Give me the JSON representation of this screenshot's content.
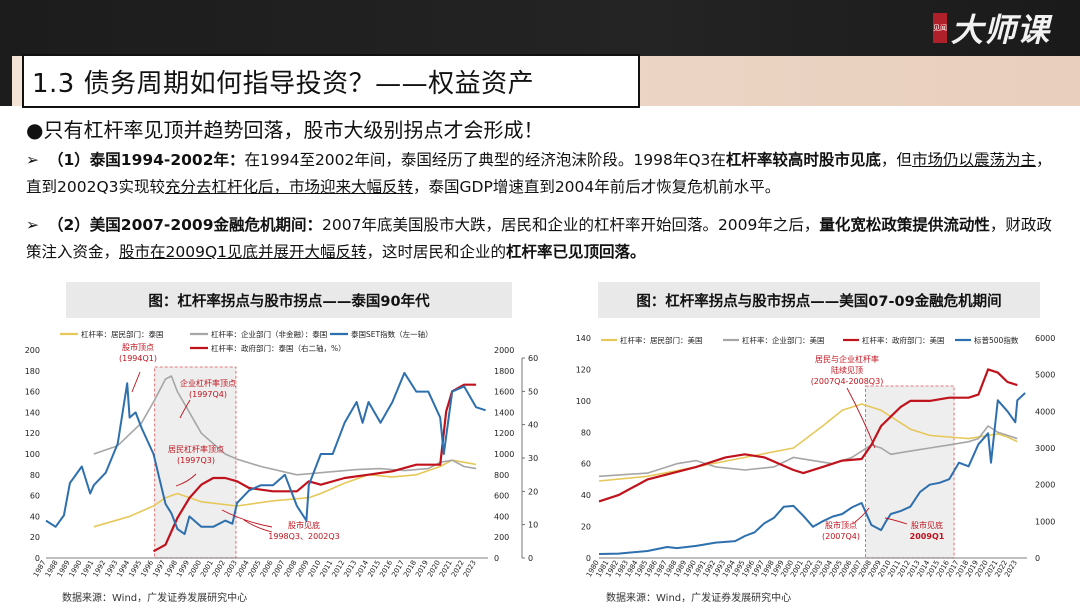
{
  "brand": {
    "seal": "见闻",
    "name": "大师课"
  },
  "title": "1.3 债务周期如何指导投资？——权益资产",
  "headline": "●只有杠杆率见顶并趋势回落，股市大级别拐点才会形成！",
  "p1": {
    "arrow": "➢",
    "lead": "（1）泰国1994-2002年：",
    "t1": "在1994至2002年间，泰国经历了典型的经济泡沫阶段。1998年Q3在",
    "b1": "杠杆率较高时股市见底",
    "t2": "，但",
    "u1": "市场仍以震荡为主",
    "t3": "，直到2002Q3实现较",
    "u2": "充分去杠杆化后，市场迎来大幅反转",
    "t4": "，泰国GDP增速直到2004年前后才恢复危机前水平。"
  },
  "p2": {
    "arrow": "➢",
    "lead": "（2）美国2007-2009金融危机期间：",
    "t1": "2007年底美国股市大跌，居民和企业的杠杆率开始回落。2009年之后，",
    "b1": "量化宽松政策提供流动性",
    "t2": "，财政政策注入资金，",
    "u1": "股市在2009Q1见底并展开大幅反转",
    "t3": "，这时居民和企业的",
    "b2": "杠杆率已见顶回落。"
  },
  "source": "数据来源：Wind，广发证券发展研究中心",
  "chart_data": [
    {
      "type": "line",
      "title": "图：杠杆率拐点与股市拐点——泰国90年代",
      "x_ticks": [
        "1987",
        "1988",
        "1989",
        "1990",
        "1991",
        "1992",
        "1993",
        "1994",
        "1995",
        "1996",
        "1997",
        "1998",
        "1999",
        "2000",
        "2001",
        "2002",
        "2003",
        "2004",
        "2005",
        "2006",
        "2007",
        "2008",
        "2009",
        "2010",
        "2011",
        "2012",
        "2013",
        "2014",
        "2015",
        "2016",
        "2017",
        "2018",
        "2019",
        "2020",
        "2021",
        "2022",
        "2023"
      ],
      "x_range": [
        1987,
        2024
      ],
      "y_left_range": [
        0,
        200
      ],
      "y_left_ticks": [
        "0",
        "20",
        "40",
        "60",
        "80",
        "100",
        "120",
        "140",
        "160",
        "180",
        "200"
      ],
      "y_mid_range": [
        0,
        2000
      ],
      "y_mid_ticks": [
        "0",
        "200",
        "400",
        "600",
        "800",
        "1000",
        "1200",
        "1400",
        "1600",
        "1800",
        "2000"
      ],
      "y_right_range": [
        0,
        60
      ],
      "y_right_ticks": [
        "0",
        "10",
        "20",
        "30",
        "40",
        "50",
        "60"
      ],
      "series": [
        {
          "name": "杠杆率：居民部门：泰国",
          "color": "#e6c85a",
          "axis": "left",
          "x": [
            1991,
            1994,
            1996,
            1997,
            1998,
            2000,
            2003,
            2006,
            2009,
            2010,
            2012,
            2014,
            2016,
            2018,
            2020,
            2021,
            2022,
            2023
          ],
          "y": [
            30,
            40,
            50,
            58,
            62,
            54,
            50,
            55,
            58,
            62,
            72,
            80,
            78,
            80,
            88,
            94,
            92,
            90
          ]
        },
        {
          "name": "杠杆率：企业部门（非金融）：泰国",
          "color": "#a6a6a6",
          "axis": "left",
          "x": [
            1991,
            1993,
            1995,
            1996,
            1997,
            1997.5,
            1998,
            1999,
            2000,
            2001,
            2002,
            2003,
            2005,
            2008,
            2010,
            2013,
            2015,
            2017,
            2019,
            2020,
            2021,
            2022,
            2023
          ],
          "y": [
            100,
            108,
            130,
            150,
            172,
            175,
            160,
            140,
            120,
            110,
            100,
            95,
            88,
            80,
            82,
            85,
            86,
            84,
            86,
            92,
            94,
            88,
            86
          ]
        },
        {
          "name": "杠杆率：政府部门：泰国（右二轴，%）",
          "color": "#c0121c",
          "axis": "right",
          "x": [
            1996,
            1997,
            1998,
            1999,
            2000,
            2001,
            2002,
            2003,
            2004,
            2006,
            2008,
            2009,
            2010,
            2012,
            2014,
            2016,
            2018,
            2019,
            2020,
            2020.5,
            2021,
            2022,
            2023
          ],
          "y": [
            2,
            4,
            12,
            18,
            22,
            24,
            24,
            23,
            21,
            20,
            20,
            23,
            22,
            24,
            25,
            26,
            28,
            28,
            28,
            44,
            50,
            52,
            52
          ]
        },
        {
          "name": "泰国SET指数（左一轴）",
          "color": "#2e6fad",
          "axis": "mid",
          "x": [
            1987,
            1987.8,
            1988.5,
            1989,
            1990,
            1990.7,
            1991,
            1992,
            1993,
            1993.8,
            1994,
            1994.5,
            1995,
            1996,
            1997,
            1997.5,
            1998,
            1998.6,
            1999,
            2000,
            2001,
            2002,
            2002.6,
            2003,
            2004,
            2005,
            2006,
            2007,
            2008,
            2008.8,
            2009,
            2010,
            2011,
            2012,
            2013,
            2013.5,
            2014,
            2015,
            2016,
            2017,
            2018,
            2019,
            2020,
            2020.3,
            2021,
            2022,
            2023,
            2023.8
          ],
          "y": [
            360,
            300,
            410,
            720,
            880,
            620,
            700,
            820,
            1100,
            1680,
            1350,
            1400,
            1250,
            1000,
            520,
            430,
            280,
            230,
            400,
            300,
            300,
            360,
            330,
            530,
            650,
            700,
            700,
            800,
            500,
            360,
            700,
            1000,
            1000,
            1300,
            1500,
            1300,
            1500,
            1300,
            1500,
            1780,
            1600,
            1600,
            1350,
            1000,
            1600,
            1650,
            1450,
            1420
          ]
        }
      ],
      "legend": [
        "杠杆率：居民部门：泰国",
        "杠杆率：企业部门（非金融）：泰国",
        "泰国SET指数（左一轴）",
        "杠杆率：政府部门：泰国（右二轴，%）"
      ],
      "annotations": [
        {
          "text": "股市顶点",
          "sub": "(1994Q1)"
        },
        {
          "text": "企业杠杆率顶点",
          "sub": "(1997Q4)"
        },
        {
          "text": "居民杠杆率顶点",
          "sub": "(1997Q3)"
        },
        {
          "text": "股市见底",
          "sub": "1998Q3、2002Q3"
        }
      ]
    },
    {
      "type": "line",
      "title": "图：杠杆率拐点与股市拐点——美国07-09金融危机期间",
      "x_ticks": [
        "1980",
        "1981",
        "1982",
        "1983",
        "1984",
        "1985",
        "1986",
        "1987",
        "1988",
        "1989",
        "1990",
        "1991",
        "1992",
        "1993",
        "1994",
        "1995",
        "1996",
        "1997",
        "1998",
        "1999",
        "2000",
        "2001",
        "2002",
        "2003",
        "2004",
        "2005",
        "2006",
        "2007",
        "2008",
        "2009",
        "2010",
        "2011",
        "2012",
        "2013",
        "2014",
        "2015",
        "2016",
        "2017",
        "2018",
        "2019",
        "2020",
        "2021",
        "2022",
        "2023"
      ],
      "x_range": [
        1980,
        2024
      ],
      "y_left_range": [
        0,
        140
      ],
      "y_left_ticks": [
        "0",
        "20",
        "40",
        "60",
        "80",
        "100",
        "120",
        "140"
      ],
      "y_right_range": [
        0,
        6000
      ],
      "y_right_ticks": [
        "0",
        "1000",
        "2000",
        "3000",
        "4000",
        "5000",
        "6000"
      ],
      "series": [
        {
          "name": "杠杆率：居民部门：美国",
          "color": "#e6c85a",
          "axis": "left",
          "x": [
            1980,
            1985,
            1990,
            1995,
            2000,
            2003,
            2005,
            2007,
            2008,
            2009,
            2010,
            2012,
            2014,
            2016,
            2018,
            2020,
            2021,
            2022,
            2023
          ],
          "y": [
            49,
            52,
            58,
            64,
            70,
            84,
            94,
            98,
            96,
            94,
            90,
            82,
            78,
            77,
            76,
            78,
            79,
            77,
            74
          ]
        },
        {
          "name": "杠杆率：企业部门：美国",
          "color": "#a6a6a6",
          "axis": "left",
          "x": [
            1980,
            1985,
            1988,
            1990,
            1992,
            1995,
            1998,
            2000,
            2002,
            2004,
            2006,
            2008,
            2009,
            2010,
            2012,
            2014,
            2016,
            2018,
            2019,
            2020,
            2021,
            2022,
            2023
          ],
          "y": [
            52,
            54,
            60,
            62,
            58,
            56,
            58,
            64,
            62,
            60,
            64,
            72,
            70,
            66,
            68,
            70,
            72,
            74,
            76,
            84,
            80,
            78,
            76
          ]
        },
        {
          "name": "杠杆率：政府部门：美国",
          "color": "#c0121c",
          "axis": "left",
          "x": [
            1980,
            1982,
            1985,
            1990,
            1993,
            1995,
            1997,
            2000,
            2001,
            2003,
            2005,
            2007,
            2008,
            2009,
            2010,
            2011,
            2012,
            2014,
            2016,
            2018,
            2019,
            2020,
            2021,
            2022,
            2023
          ],
          "y": [
            36,
            40,
            50,
            58,
            64,
            66,
            64,
            56,
            54,
            58,
            62,
            63,
            72,
            84,
            90,
            96,
            100,
            100,
            102,
            102,
            104,
            120,
            118,
            112,
            110
          ]
        },
        {
          "name": "标普500指数",
          "color": "#2e6fad",
          "axis": "right",
          "x": [
            1980,
            1982,
            1985,
            1987,
            1988,
            1990,
            1992,
            1994,
            1995,
            1996,
            1997,
            1998,
            1999,
            2000,
            2001,
            2002,
            2003,
            2004,
            2005,
            2006,
            2007,
            2008,
            2009,
            2009.5,
            2010,
            2011,
            2012,
            2013,
            2014,
            2015,
            2016,
            2017,
            2018,
            2019,
            2020,
            2020.3,
            2021,
            2022,
            2022.8,
            2023,
            2023.8
          ],
          "y": [
            110,
            120,
            190,
            300,
            270,
            330,
            420,
            460,
            600,
            700,
            950,
            1100,
            1400,
            1420,
            1150,
            850,
            1000,
            1130,
            1200,
            1380,
            1500,
            900,
            760,
            1000,
            1200,
            1280,
            1400,
            1800,
            2000,
            2050,
            2150,
            2600,
            2500,
            3100,
            3400,
            2600,
            4300,
            4000,
            3700,
            4300,
            4500
          ]
        }
      ],
      "legend": [
        "杠杆率：居民部门：美国",
        "杠杆率：企业部门：美国",
        "杠杆率：政府部门：美国",
        "标普500指数"
      ],
      "annotations": [
        {
          "text": "居民与企业杠杆率",
          "text2": "陆续见顶",
          "sub": "(2007Q4-2008Q3)"
        },
        {
          "text": "股市顶点",
          "sub": "(2007Q4)"
        },
        {
          "text": "股市见底",
          "sub": "2009Q1"
        }
      ]
    }
  ]
}
